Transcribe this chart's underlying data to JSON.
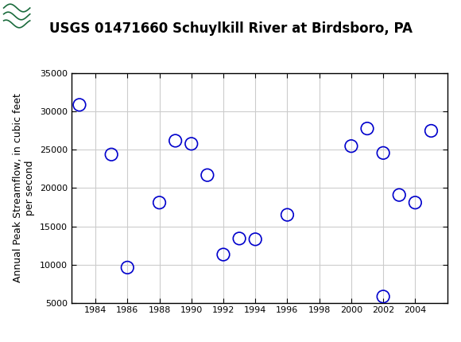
{
  "title": "USGS 01471660 Schuylkill River at Birdsboro, PA",
  "ylabel": "Annual Peak Streamflow, in cubic feet\nper second",
  "all_years": [
    1983,
    1985,
    1986,
    1988,
    1989,
    1990,
    1991,
    1992,
    1993,
    1994,
    1996,
    2000,
    2001,
    2002,
    2002,
    2003,
    2004,
    2005
  ],
  "all_flows": [
    30900,
    24400,
    9600,
    18100,
    26200,
    25800,
    21700,
    11300,
    13400,
    13300,
    16500,
    25500,
    27800,
    24600,
    5800,
    19100,
    18100,
    27500
  ],
  "marker_color": "#0000CC",
  "marker_size": 6,
  "xlim": [
    1982.5,
    2006.0
  ],
  "ylim": [
    5000,
    35000
  ],
  "xticks": [
    1984,
    1986,
    1988,
    1990,
    1992,
    1994,
    1996,
    1998,
    2000,
    2002,
    2004
  ],
  "yticks": [
    5000,
    10000,
    15000,
    20000,
    25000,
    30000,
    35000
  ],
  "grid_color": "#cccccc",
  "bg_color": "#ffffff",
  "header_color": "#1a6b3c",
  "title_fontsize": 12,
  "label_fontsize": 9,
  "tick_fontsize": 8
}
